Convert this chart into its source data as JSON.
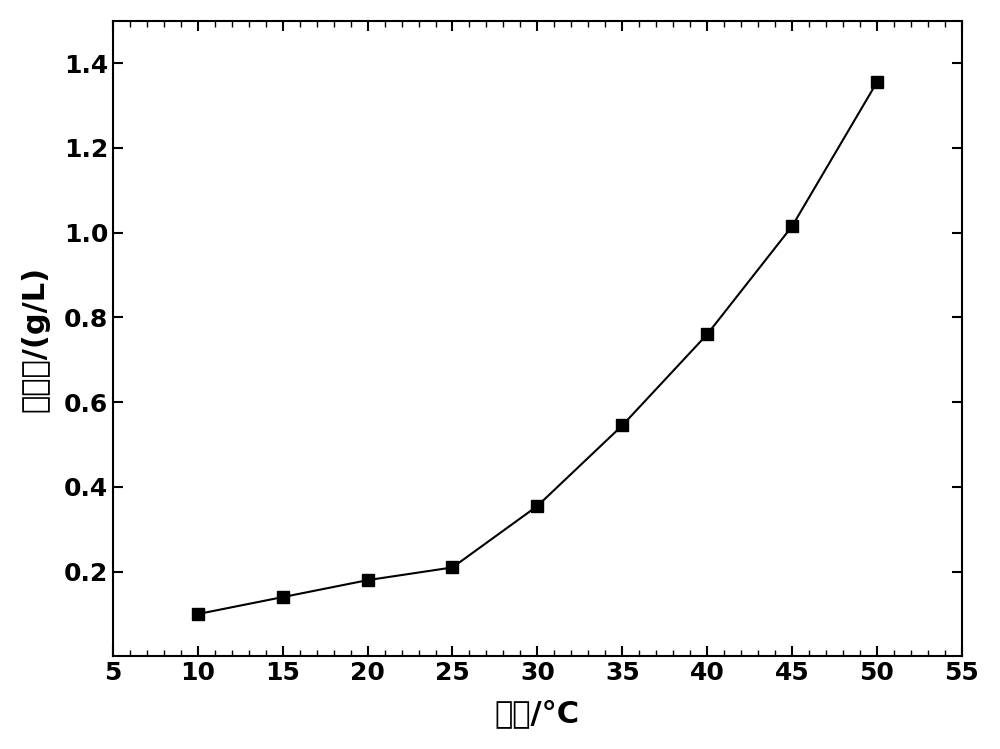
{
  "x": [
    10,
    15,
    20,
    25,
    30,
    35,
    40,
    45,
    50
  ],
  "y": [
    0.1,
    0.14,
    0.18,
    0.21,
    0.355,
    0.545,
    0.76,
    1.015,
    1.355
  ],
  "xlim": [
    5,
    55
  ],
  "ylim": [
    0,
    1.5
  ],
  "xticks": [
    5,
    10,
    15,
    20,
    25,
    30,
    35,
    40,
    45,
    50,
    55
  ],
  "yticks": [
    0.2,
    0.4,
    0.6,
    0.8,
    1.0,
    1.2,
    1.4
  ],
  "xlabel": "温度/°C",
  "ylabel": "溶解度/(g/L)",
  "line_color": "#000000",
  "marker": "s",
  "marker_color": "#000000",
  "marker_size": 9,
  "line_width": 1.5,
  "background_color": "#ffffff",
  "tick_fontsize": 18,
  "label_fontsize": 22
}
